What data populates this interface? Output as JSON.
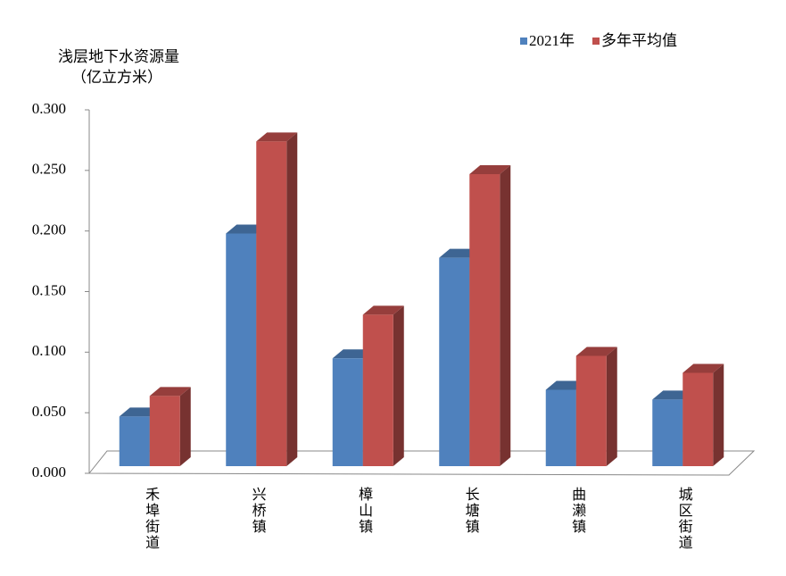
{
  "chart_data": {
    "type": "bar3d",
    "y_label": [
      "浅层地下水资源量",
      "（亿立方米）"
    ],
    "categories": [
      "禾埠街道",
      "兴桥镇",
      "樟山镇",
      "长塘镇",
      "曲濑镇",
      "城区街道"
    ],
    "series": [
      {
        "name": "2021年",
        "color": "#4f81bd",
        "values": [
          0.041,
          0.192,
          0.089,
          0.172,
          0.063,
          0.055
        ]
      },
      {
        "name": "多年平均值",
        "color": "#c0504d",
        "values": [
          0.058,
          0.268,
          0.125,
          0.241,
          0.091,
          0.077
        ]
      }
    ],
    "ylim": [
      0,
      0.3
    ],
    "yticks": [
      {
        "value": 0,
        "label": "0.000"
      },
      {
        "value": 0.05,
        "label": "0.050"
      },
      {
        "value": 0.1,
        "label": "0.100"
      },
      {
        "value": 0.15,
        "label": "0.150"
      },
      {
        "value": 0.2,
        "label": "0.200"
      },
      {
        "value": 0.25,
        "label": "0.250"
      },
      {
        "value": 0.3,
        "label": "0.300"
      }
    ],
    "legend": "top-right"
  }
}
